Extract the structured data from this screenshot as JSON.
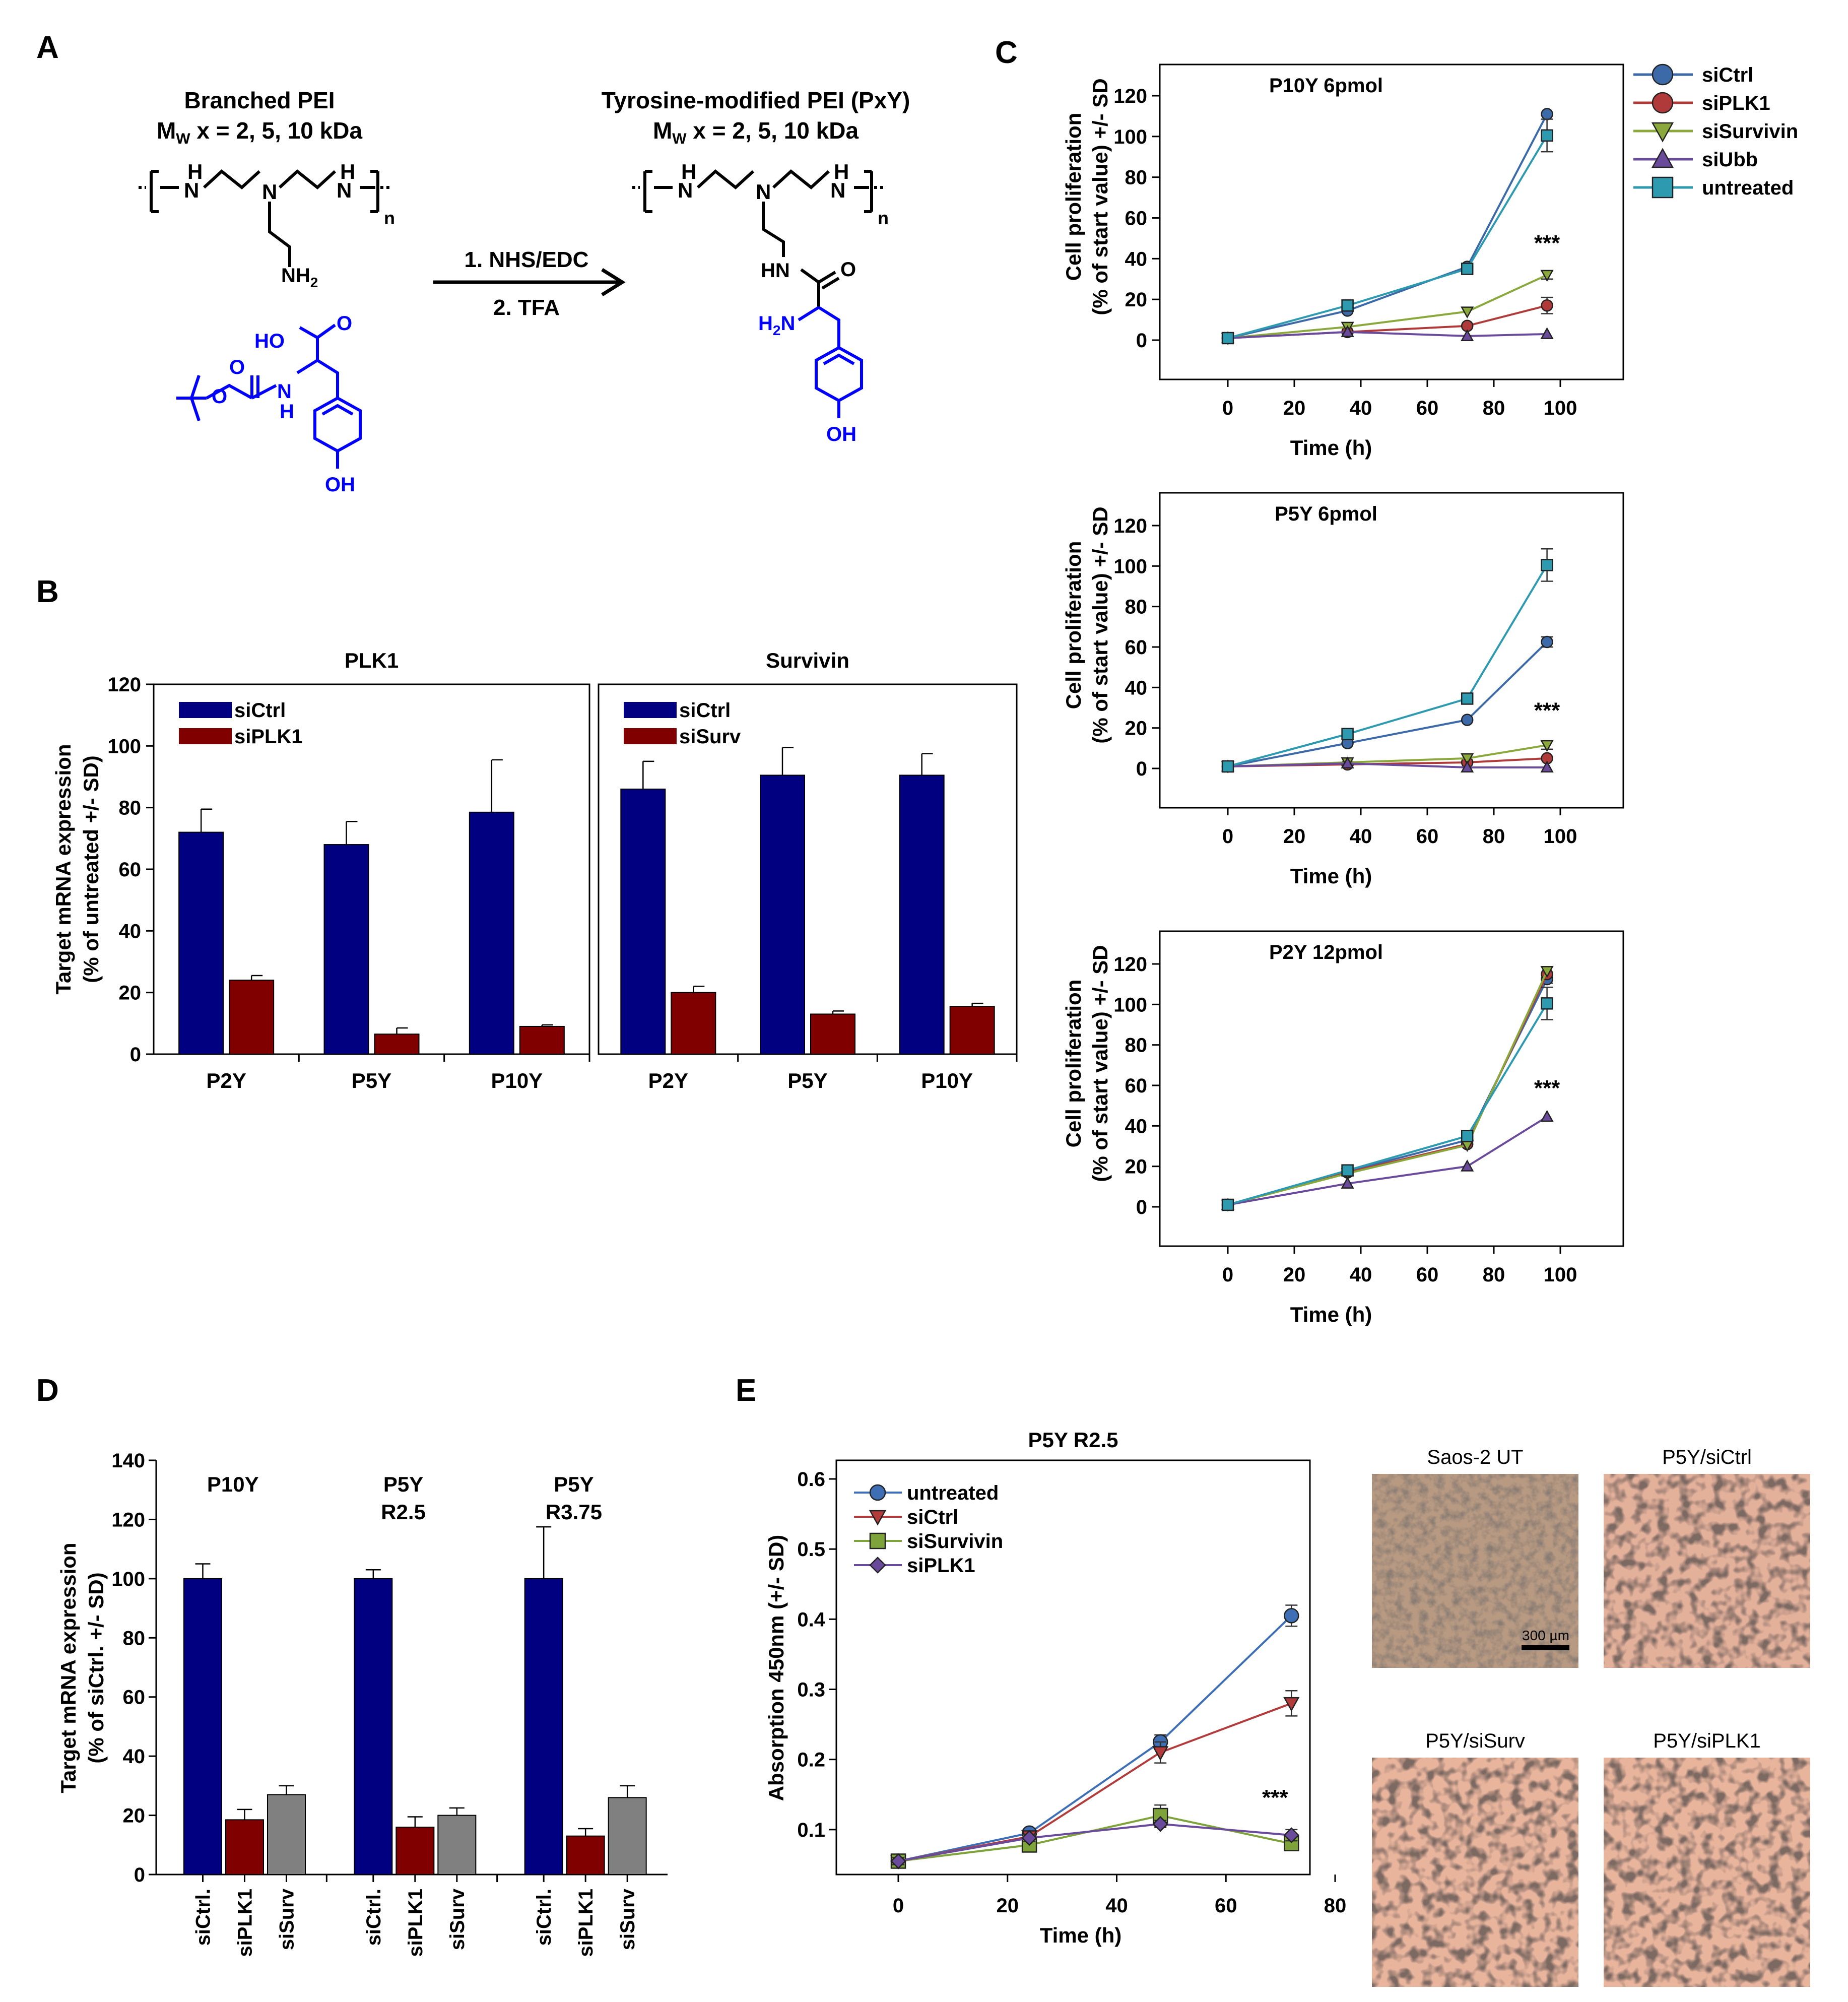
{
  "colors": {
    "siCtrl_bar": "#000080",
    "si_bar": "#800000",
    "siSurv_bar": "#808080",
    "chem_blue": "#0000ff",
    "c_siCtrl": "#3c6aa8",
    "c_siPLK1": "#b03a3a",
    "c_siSurvivin": "#8aa83c",
    "c_siUbb": "#6a4a9a",
    "c_untreated": "#2e9ab0",
    "e_untreated": "#3e6fb5",
    "e_siCtrl": "#b23b3b",
    "e_siSurvivin": "#7ea33a",
    "e_siPLK1": "#6a4a9a",
    "micro_ut": "#b89a82",
    "micro_treated": "#e8b49c"
  },
  "panels": {
    "A": "A",
    "B": "B",
    "C": "C",
    "D": "D",
    "E": "E"
  },
  "schemeA": {
    "left_title": "Branched PEI",
    "left_mw": "M",
    "left_mw_sub": "W",
    "left_mw_rest": " x = 2, 5, 10 kDa",
    "right_title": "Tyrosine-modified PEI (PxY)",
    "right_mw": "M",
    "right_mw_sub": "W",
    "right_mw_rest": " x = 2, 5, 10 kDa",
    "step1": "1. NHS/EDC",
    "step2": "2. TFA",
    "H": "H",
    "N": "N",
    "n": "n",
    "NH2": "NH",
    "sub2": "2",
    "HO": "HO",
    "O": "O",
    "OH": "OH",
    "HN": "HN",
    "H2N": "H",
    "H2N_rest": "N"
  },
  "chart_data": [
    {
      "id": "B-PLK1",
      "type": "bar",
      "title": "PLK1",
      "ylabel_line1": "Target mRNA expression",
      "ylabel_line2": "(% of untreated +/- SD)",
      "ylim": [
        0,
        120
      ],
      "yticks": [
        "0",
        "20",
        "40",
        "60",
        "80",
        "100",
        "120"
      ],
      "categories": [
        "P2Y",
        "P5Y",
        "P10Y"
      ],
      "series": [
        {
          "name": "siCtrl",
          "values": [
            72,
            68,
            78.5
          ],
          "errors": [
            7.5,
            7.5,
            17
          ]
        },
        {
          "name": "siPLK1",
          "values": [
            24,
            6.5,
            9
          ],
          "errors": [
            1.5,
            2,
            0.5
          ]
        }
      ]
    },
    {
      "id": "B-Survivin",
      "type": "bar",
      "title": "Survivin",
      "ylim": [
        0,
        120
      ],
      "categories": [
        "P2Y",
        "P5Y",
        "P10Y"
      ],
      "series": [
        {
          "name": "siCtrl",
          "values": [
            86,
            90.5,
            90.5
          ],
          "errors": [
            9,
            9,
            7
          ]
        },
        {
          "name": "siSurv",
          "values": [
            20,
            13,
            15.5
          ],
          "errors": [
            2,
            1,
            1
          ]
        }
      ]
    },
    {
      "id": "C1",
      "type": "line",
      "title": "P10Y 6pmol",
      "xlabel": "Time (h)",
      "ylabel_line1": "Cell proliferation",
      "ylabel_line2": "(% of start value) +/- SD",
      "xlim": [
        -10,
        120
      ],
      "ylim": [
        -20,
        125
      ],
      "xticks": [
        "0",
        "20",
        "40",
        "60",
        "80",
        "100"
      ],
      "yticks": [
        "0",
        "20",
        "40",
        "60",
        "80",
        "100",
        "120"
      ],
      "x": [
        0,
        36,
        72,
        96
      ],
      "annotation": "***",
      "series": [
        {
          "name": "siCtrl",
          "values": [
            1,
            14.5,
            36,
            111
          ],
          "errors": [
            0,
            0,
            0,
            0
          ]
        },
        {
          "name": "siPLK1",
          "values": [
            1,
            4,
            7,
            17
          ],
          "errors": [
            0,
            0,
            0,
            4
          ]
        },
        {
          "name": "siSurvivin",
          "values": [
            1,
            6.5,
            14,
            32
          ],
          "errors": [
            0,
            0,
            0,
            2
          ]
        },
        {
          "name": "siUbb",
          "values": [
            1,
            4,
            2,
            3
          ],
          "errors": [
            0,
            0,
            0,
            0
          ]
        },
        {
          "name": "untreated",
          "values": [
            1,
            17,
            35,
            100.5
          ],
          "errors": [
            0,
            0,
            0,
            8
          ]
        }
      ]
    },
    {
      "id": "C2",
      "type": "line",
      "title": "P5Y 6pmol",
      "xlabel": "Time (h)",
      "ylabel_line1": "Cell proliferation",
      "ylabel_line2": "(% of start value) +/- SD",
      "xlim": [
        -10,
        120
      ],
      "ylim": [
        -20,
        125
      ],
      "x": [
        0,
        36,
        72,
        96
      ],
      "annotation": "***",
      "series": [
        {
          "name": "siCtrl",
          "values": [
            1,
            12.5,
            24,
            62.5
          ],
          "errors": [
            0,
            0,
            0,
            2.5
          ]
        },
        {
          "name": "siPLK1",
          "values": [
            1,
            2,
            3,
            5
          ],
          "errors": [
            0,
            0,
            0,
            0
          ]
        },
        {
          "name": "siSurvivin",
          "values": [
            1,
            3,
            5,
            11.5
          ],
          "errors": [
            0,
            0,
            0,
            2
          ]
        },
        {
          "name": "siUbb",
          "values": [
            1,
            2.5,
            0.5,
            0.5
          ],
          "errors": [
            0,
            0,
            0,
            0
          ]
        },
        {
          "name": "untreated",
          "values": [
            1,
            17,
            34.5,
            100.5
          ],
          "errors": [
            0,
            0,
            0,
            8
          ]
        }
      ]
    },
    {
      "id": "C3",
      "type": "line",
      "title": "P2Y 12pmol",
      "xlabel": "Time (h)",
      "ylabel_line1": "Cell proliferation",
      "ylabel_line2": "(% of start value) +/- SD",
      "xlim": [
        -10,
        120
      ],
      "ylim": [
        -20,
        125
      ],
      "x": [
        0,
        36,
        72,
        96
      ],
      "annotation": "***",
      "series": [
        {
          "name": "siCtrl",
          "values": [
            1,
            17.5,
            33,
            112.5
          ],
          "errors": [
            0,
            0,
            0,
            2
          ]
        },
        {
          "name": "siPLK1",
          "values": [
            1,
            17,
            31,
            115
          ],
          "errors": [
            0,
            0,
            0,
            0
          ]
        },
        {
          "name": "siSurvivin",
          "values": [
            1,
            16.5,
            30.5,
            116.5
          ],
          "errors": [
            0,
            0,
            0,
            0
          ]
        },
        {
          "name": "siUbb",
          "values": [
            1,
            11.5,
            20,
            44.5
          ],
          "errors": [
            0,
            0,
            0,
            0
          ]
        },
        {
          "name": "untreated",
          "values": [
            1,
            18,
            35,
            100.5
          ],
          "errors": [
            0,
            0,
            0,
            8
          ]
        }
      ]
    },
    {
      "id": "D",
      "type": "bar",
      "ylabel_line1": "Target mRNA expression",
      "ylabel_line2": "(% of siCtrl. +/- SD)",
      "ylim": [
        0,
        140
      ],
      "yticks": [
        "0",
        "20",
        "40",
        "60",
        "80",
        "100",
        "120",
        "140"
      ],
      "groups": [
        {
          "label1": "P10Y",
          "label2": "",
          "values": [
            100,
            18.5,
            27
          ],
          "errors": [
            5,
            3.5,
            3
          ]
        },
        {
          "label1": "P5Y",
          "label2": "R2.5",
          "values": [
            100,
            16,
            20
          ],
          "errors": [
            3,
            3.5,
            2.5
          ]
        },
        {
          "label1": "P5Y",
          "label2": "R3.75",
          "values": [
            100,
            13,
            26
          ],
          "errors": [
            17.5,
            2.5,
            4
          ]
        }
      ],
      "bar_labels": [
        "siCtrl.",
        "siPLK1",
        "siSurv"
      ]
    },
    {
      "id": "E",
      "type": "line",
      "title": "P5Y R2.5",
      "xlabel": "Time (h)",
      "ylabel": "Absorption 450nm (+/- SD)",
      "xlim": [
        -15,
        80
      ],
      "ylim": [
        0,
        0.6
      ],
      "xticks": [
        "0",
        "20",
        "40",
        "60",
        "80"
      ],
      "yticks": [
        "0.1",
        "0.2",
        "0.3",
        "0.4",
        "0.5",
        "0.6"
      ],
      "x": [
        0,
        24,
        48,
        72
      ],
      "annotation": "***",
      "series": [
        {
          "name": "untreated",
          "values": [
            0.055,
            0.095,
            0.225,
            0.405
          ],
          "errors": [
            0.005,
            0.005,
            0.01,
            0.015
          ]
        },
        {
          "name": "siCtrl",
          "values": [
            0.055,
            0.09,
            0.21,
            0.28
          ],
          "errors": [
            0.005,
            0.005,
            0.015,
            0.018
          ]
        },
        {
          "name": "siSurvivin",
          "values": [
            0.055,
            0.078,
            0.12,
            0.08
          ],
          "errors": [
            0.005,
            0.008,
            0.015,
            0.008
          ]
        },
        {
          "name": "siPLK1",
          "values": [
            0.055,
            0.088,
            0.108,
            0.092
          ],
          "errors": [
            0.005,
            0.005,
            0.005,
            0.008
          ]
        }
      ]
    }
  ],
  "micrographs": {
    "m1": "Saos-2 UT",
    "m2": "P5Y/siCtrl",
    "m3": "P5Y/siSurv",
    "m4": "P5Y/siPLK1",
    "scale": "300 µm"
  }
}
